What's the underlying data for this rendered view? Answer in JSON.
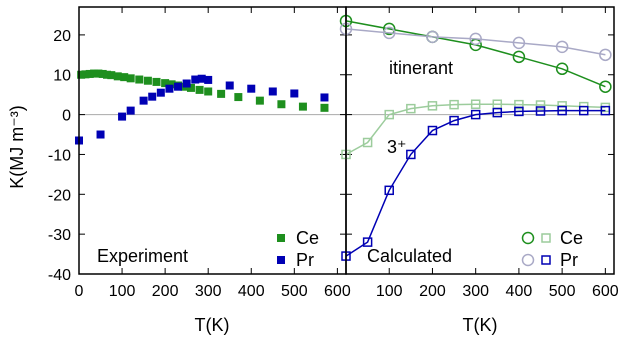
{
  "chart_data": [
    {
      "type": "scatter",
      "panel": "left",
      "xlabel": "T(K)",
      "ylabel": "K(MJ m⁻³)",
      "xlim": [
        0,
        620
      ],
      "ylim": [
        -40,
        27
      ],
      "xticks": [
        0,
        100,
        200,
        300,
        400,
        500,
        600
      ],
      "yticks": [
        -40,
        -30,
        -20,
        -10,
        0,
        10,
        20
      ],
      "grid": false,
      "legend_position": "bottom-right",
      "annotation": "Experiment",
      "series": [
        {
          "name": "Ce",
          "color": "#1e8f1e",
          "marker": "filled-square",
          "x": [
            5,
            15,
            25,
            35,
            45,
            55,
            65,
            75,
            90,
            105,
            120,
            140,
            160,
            180,
            200,
            215,
            230,
            245,
            260,
            280,
            300,
            330,
            370,
            420,
            470,
            520,
            570
          ],
          "y": [
            10.0,
            10.1,
            10.2,
            10.3,
            10.3,
            10.2,
            10.0,
            9.9,
            9.6,
            9.4,
            9.1,
            8.8,
            8.5,
            8.2,
            7.9,
            7.6,
            7.3,
            7.0,
            6.7,
            6.2,
            5.8,
            5.2,
            4.4,
            3.5,
            2.6,
            2.0,
            1.7
          ]
        },
        {
          "name": "Pr",
          "color": "#0000b4",
          "marker": "filled-square",
          "x": [
            0,
            50,
            100,
            120,
            150,
            170,
            190,
            210,
            230,
            250,
            270,
            285,
            300,
            350,
            400,
            450,
            500,
            570
          ],
          "y": [
            -6.5,
            -5.0,
            -0.5,
            1.0,
            3.5,
            4.5,
            5.5,
            6.5,
            7.0,
            7.8,
            8.8,
            9.0,
            8.7,
            7.3,
            6.5,
            5.8,
            5.3,
            4.3
          ]
        }
      ]
    },
    {
      "type": "line",
      "panel": "right",
      "xlabel": "T(K)",
      "xlim": [
        0,
        620
      ],
      "ylim": [
        -40,
        27
      ],
      "xticks": [
        100,
        200,
        300,
        400,
        500,
        600
      ],
      "grid": false,
      "legend_position": "bottom-right",
      "annotation": "Calculated",
      "labels": [
        "itinerant",
        "3⁺"
      ],
      "legend_names": [
        "Ce",
        "Pr"
      ],
      "series": [
        {
          "name": "Ce",
          "model": "itinerant",
          "color": "#1e8f1e",
          "marker": "open-circle",
          "x": [
            0,
            100,
            200,
            300,
            400,
            500,
            600
          ],
          "y": [
            23.5,
            21.5,
            19.5,
            17.5,
            14.5,
            11.5,
            7.0
          ]
        },
        {
          "name": "Pr",
          "model": "itinerant",
          "color": "#a9a9c6",
          "marker": "open-circle",
          "x": [
            0,
            100,
            200,
            300,
            400,
            500,
            600
          ],
          "y": [
            21.5,
            20.5,
            19.5,
            19.0,
            18.0,
            17.0,
            15.0
          ]
        },
        {
          "name": "Ce",
          "model": "3+",
          "color": "#9ccc9c",
          "marker": "open-square",
          "x": [
            0,
            50,
            100,
            150,
            200,
            250,
            300,
            350,
            400,
            450,
            500,
            550,
            600
          ],
          "y": [
            -10.0,
            -7.0,
            0.0,
            1.5,
            2.2,
            2.5,
            2.6,
            2.6,
            2.5,
            2.4,
            2.2,
            2.0,
            1.8
          ]
        },
        {
          "name": "Pr",
          "model": "3+",
          "color": "#0000b4",
          "marker": "open-square",
          "x": [
            0,
            50,
            100,
            150,
            200,
            250,
            300,
            350,
            400,
            450,
            500,
            550,
            600
          ],
          "y": [
            -35.5,
            -32.0,
            -19.0,
            -10.0,
            -4.0,
            -1.5,
            0.0,
            0.5,
            0.8,
            0.9,
            1.0,
            1.0,
            1.0
          ]
        }
      ]
    }
  ]
}
